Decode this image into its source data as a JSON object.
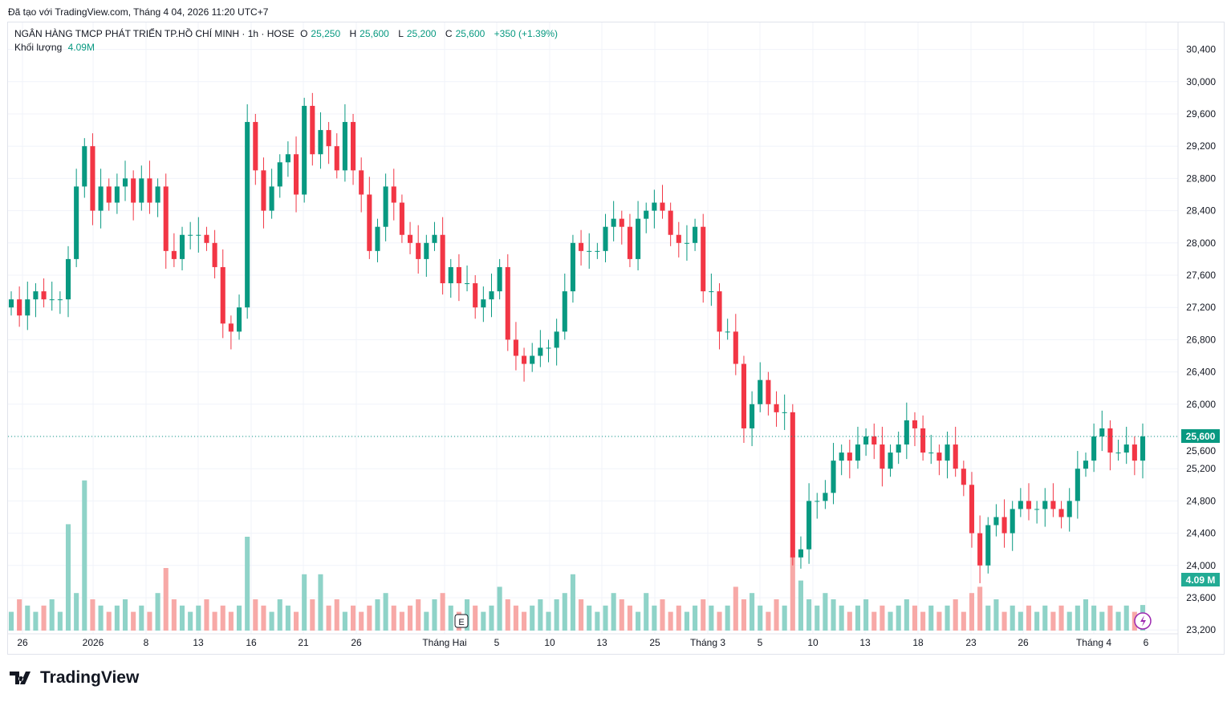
{
  "caption": "Đã tạo với TradingView.com, Tháng 4 04, 2026 11:20 UTC+7",
  "legend": {
    "symbol": "NGÂN HÀNG TMCP PHÁT TRIỂN TP.HỒ CHÍ MINH · 1h · HOSE",
    "o_label": "O",
    "o": "25,250",
    "h_label": "H",
    "h": "25,600",
    "l_label": "L",
    "l": "25,200",
    "c_label": "C",
    "c": "25,600",
    "change": "+350 (+1.39%)",
    "volume_label": "Khối lượng",
    "volume": "4.09M"
  },
  "brand": "TradingView",
  "colors": {
    "up": "#089981",
    "down": "#f23645",
    "vol_up": "#8fd3c8",
    "vol_down": "#f7a9a7"
  },
  "chart_data": {
    "type": "candlestick",
    "ylim": [
      23200,
      30400
    ],
    "yticks": [
      "30,400",
      "30,000",
      "29,600",
      "29,200",
      "28,800",
      "28,400",
      "28,000",
      "27,600",
      "27,200",
      "26,800",
      "26,400",
      "26,000",
      "25,600",
      "25,200",
      "24,800",
      "24,400",
      "24,000",
      "23,600",
      "23,200"
    ],
    "ytick_values": [
      30400,
      30000,
      29600,
      29200,
      28800,
      28400,
      28000,
      27600,
      27200,
      26800,
      26400,
      26000,
      25600,
      25200,
      24800,
      24400,
      24000,
      23600,
      23200
    ],
    "xticks": [
      "26",
      "2026",
      "8",
      "13",
      "16",
      "21",
      "26",
      "Tháng Hai",
      "5",
      "10",
      "13",
      "25",
      "Tháng 3",
      "5",
      "10",
      "13",
      "18",
      "23",
      "26",
      "Tháng 4",
      "6"
    ],
    "last_price": "25,600",
    "last_volume": "4.09 M",
    "close": [
      27300,
      27100,
      27300,
      27400,
      27300,
      27300,
      27300,
      27800,
      28700,
      29200,
      28400,
      28700,
      28500,
      28700,
      28800,
      28500,
      28800,
      28500,
      28700,
      27900,
      27800,
      28100,
      28100,
      28100,
      28000,
      27700,
      27000,
      26900,
      27200,
      29500,
      28900,
      28400,
      28700,
      29000,
      29100,
      28600,
      29700,
      29100,
      29400,
      29200,
      28900,
      29500,
      28900,
      28600,
      27900,
      28200,
      28700,
      28500,
      28100,
      28000,
      27800,
      28000,
      28100,
      27500,
      27700,
      27500,
      27500,
      27200,
      27300,
      27400,
      27700,
      26800,
      26600,
      26500,
      26600,
      26700,
      26700,
      26900,
      27400,
      28000,
      27900,
      27900,
      27900,
      28200,
      28300,
      28200,
      27800,
      28300,
      28400,
      28500,
      28400,
      28100,
      28000,
      28000,
      28200,
      27400,
      27400,
      26900,
      26900,
      26500,
      25700,
      26000,
      26300,
      26000,
      25900,
      25900,
      24100,
      24200,
      24800,
      24800,
      24900,
      25300,
      25400,
      25300,
      25500,
      25600,
      25500,
      25200,
      25400,
      25500,
      25800,
      25700,
      25400,
      25400,
      25300,
      25500,
      25200,
      25000,
      24400,
      24000,
      24500,
      24600,
      24400,
      24700,
      24800,
      24700,
      24700,
      24800,
      24700,
      24600,
      24800,
      25200,
      25300,
      25600,
      25700,
      25400,
      25400,
      25500,
      25300,
      25600
    ],
    "volume_m": [
      3,
      5,
      4,
      3,
      4,
      5,
      3,
      17,
      6,
      24,
      5,
      4,
      3,
      4,
      5,
      3,
      4,
      3,
      6,
      10,
      5,
      4,
      3,
      4,
      5,
      3,
      4,
      3,
      4,
      15,
      5,
      4,
      3,
      5,
      4,
      3,
      9,
      5,
      9,
      4,
      5,
      3,
      4,
      3,
      4,
      5,
      6,
      4,
      3,
      4,
      5,
      3,
      5,
      6,
      4,
      3,
      5,
      4,
      3,
      4,
      7,
      5,
      4,
      3,
      4,
      5,
      3,
      5,
      6,
      9,
      5,
      4,
      3,
      4,
      6,
      5,
      4,
      3,
      6,
      4,
      5,
      3,
      4,
      3,
      4,
      5,
      4,
      3,
      4,
      7,
      5,
      6,
      4,
      3,
      5,
      4,
      12,
      8,
      5,
      4,
      6,
      5,
      4,
      3,
      4,
      5,
      3,
      4,
      3,
      4,
      5,
      4,
      3,
      4,
      3,
      4,
      5,
      3,
      6,
      7,
      4,
      5,
      3,
      4,
      3,
      4,
      3,
      4,
      3,
      4,
      3,
      4,
      5,
      4,
      3,
      4,
      3,
      4,
      3,
      4.09
    ]
  }
}
